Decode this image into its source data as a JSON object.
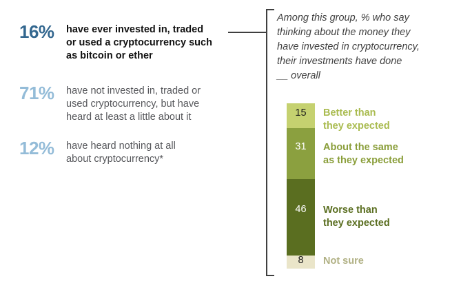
{
  "colors": {
    "percent_dark_blue": "#33678f",
    "percent_light_blue": "#94bcd8",
    "stat_text_gray": "#55565a",
    "stat_text_black": "#121212",
    "question_text": "#404040",
    "bracket_line": "#3f3f3f",
    "segment_better": "#c5d170",
    "segment_same": "#8ba03f",
    "segment_worse": "#5a6e20",
    "segment_not_sure": "#eae5c9",
    "label_not_sure": "#b0b083"
  },
  "panel": {
    "intro_lines": [
      "Among this group, % who say",
      "thinking about the money they",
      "have invested in cryptocurrency,",
      "their investments have done",
      "__ overall"
    ]
  },
  "chart_data": [
    {
      "type": "table",
      "units": "% of adults",
      "rows": [
        {
          "value": 16,
          "percent_label": "16%",
          "text": "have ever invested in, traded or used a cryptocurrency such as bitcoin or ether"
        },
        {
          "value": 71,
          "percent_label": "71%",
          "text": "have not invested in, traded or used cryptocurrency, but have heard at least a little about it"
        },
        {
          "value": 12,
          "percent_label": "12%",
          "text": "have heard nothing at all about cryptocurrency*"
        }
      ]
    },
    {
      "type": "bar",
      "stacked": true,
      "orientation": "vertical",
      "title": "Among this group, % who say thinking about the money they have invested in cryptocurrency, their investments have done __ overall",
      "categories": [
        "Better than they expected",
        "About the same as they expected",
        "Worse than they expected",
        "Not sure"
      ],
      "values": [
        15,
        31,
        46,
        8
      ],
      "segments": [
        {
          "value": 15,
          "label": "Better than they expected",
          "label_lines": [
            "Better than",
            "they expected"
          ],
          "color": "#c5d170",
          "number_color": "#1a1a1a",
          "label_color": "#a9bb4f"
        },
        {
          "value": 31,
          "label": "About the same as they expected",
          "label_lines": [
            "About the same",
            "as they expected"
          ],
          "color": "#8ba03f",
          "number_color": "#ffffff",
          "label_color": "#8a9e3a"
        },
        {
          "value": 46,
          "label": "Worse than they expected",
          "label_lines": [
            "Worse than",
            "they expected"
          ],
          "color": "#5a6e20",
          "number_color": "#ffffff",
          "label_color": "#5a6e20"
        },
        {
          "value": 8,
          "label": "Not sure",
          "label_lines": [
            "Not sure"
          ],
          "color": "#eae5c9",
          "number_color": "#1a1a1a",
          "label_color": "#b0b083"
        }
      ]
    }
  ]
}
